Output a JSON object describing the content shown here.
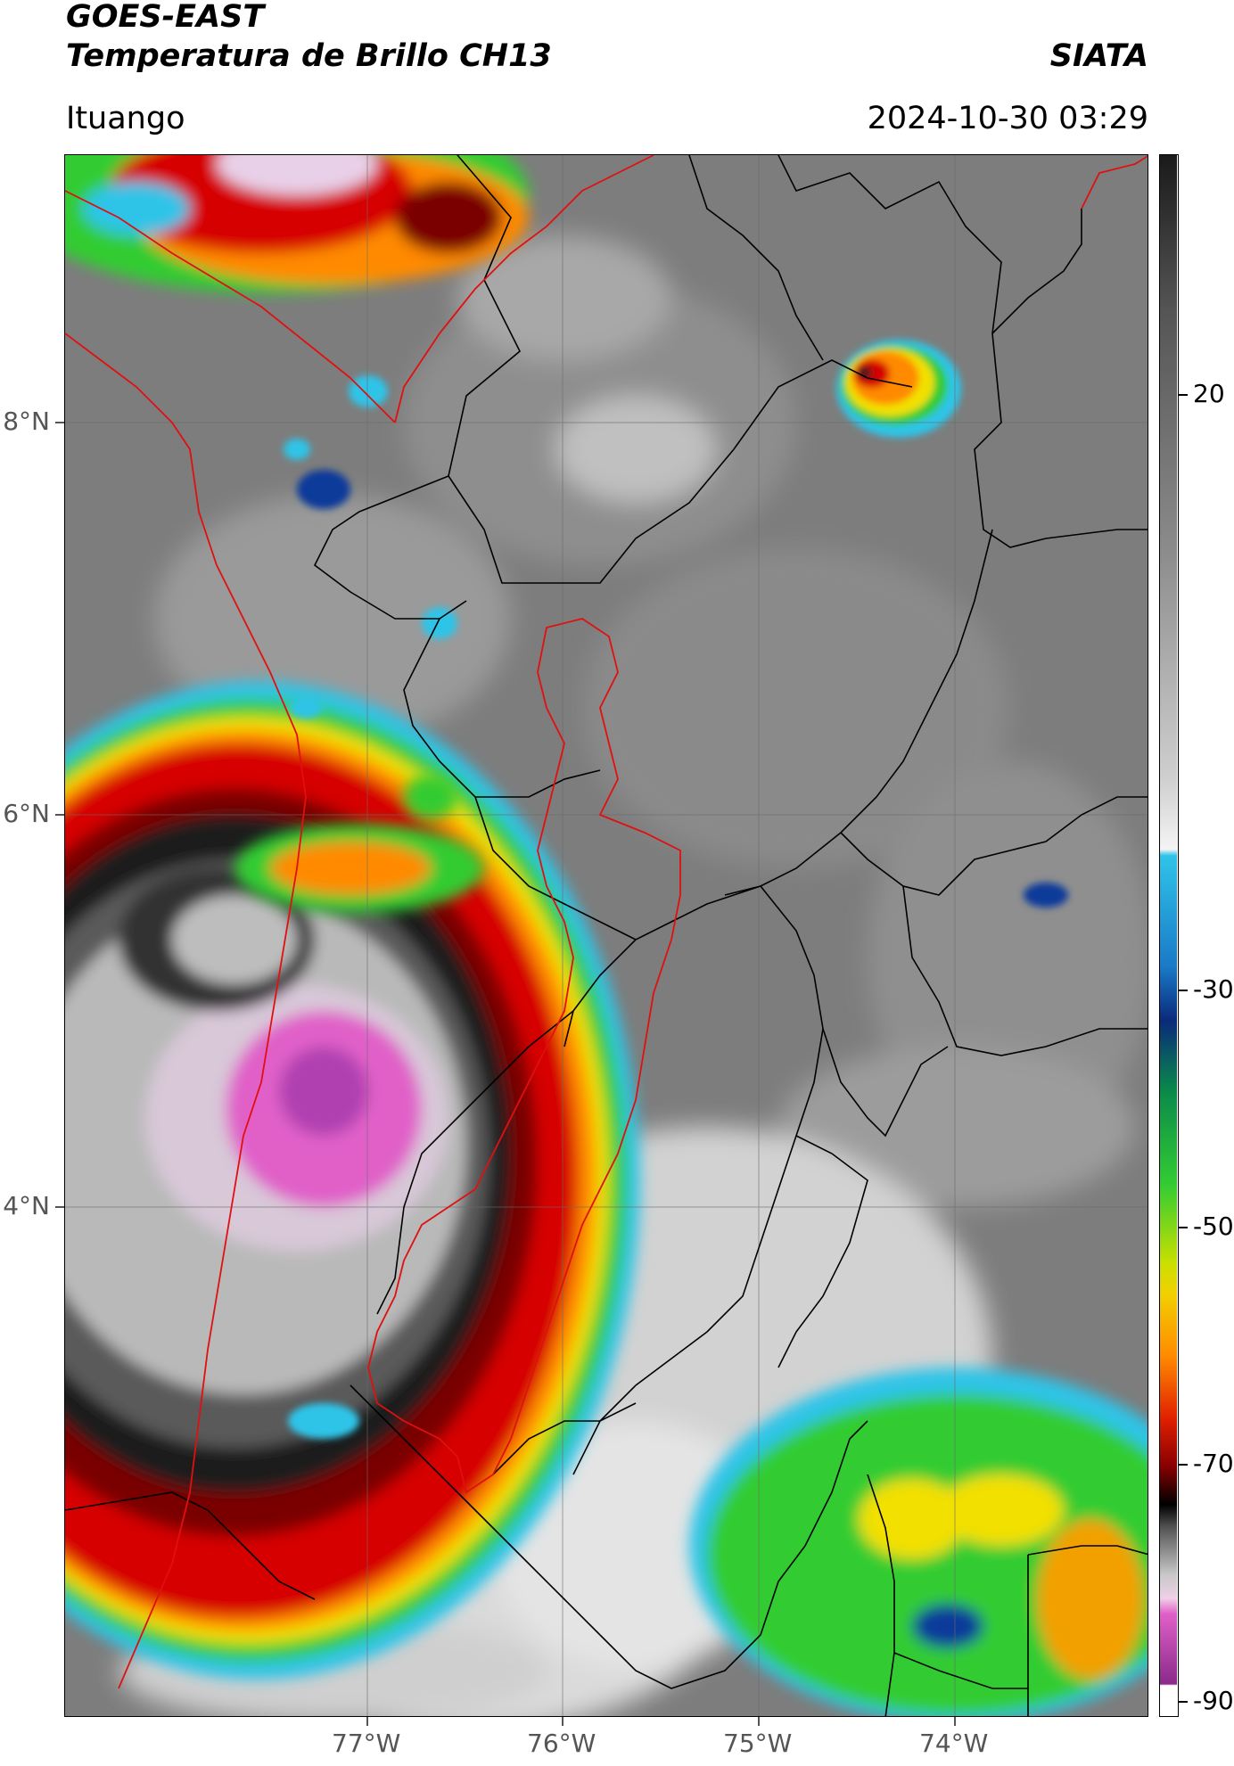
{
  "header": {
    "title_line1": "GOES-EAST",
    "title_line2": "Temperatura de Brillo CH13",
    "organization": "SIATA",
    "region": "Ituango",
    "datetime": "2024-10-30 03:29"
  },
  "colorbar": {
    "ticks": [
      {
        "label": "20",
        "value": 20
      },
      {
        "label": "-30",
        "value": -30
      },
      {
        "label": "-50",
        "value": -50
      },
      {
        "label": "-70",
        "value": -70
      },
      {
        "label": "-90",
        "value": -90
      }
    ],
    "range": [
      -92,
      45
    ],
    "colors": {
      "warm_top": "#1a1a1a",
      "warm_gray": "#777777",
      "light_gray": "#e8e8e8",
      "cyan": "#2fc4e8",
      "blue": "#0a3a9a",
      "green": "#33cc33",
      "yellow": "#f2e000",
      "orange": "#ff8a00",
      "red": "#d60000",
      "darkred": "#5a0000",
      "black": "#000000",
      "pink": "#e060c8",
      "purple": "#8a2a8a"
    }
  },
  "axes": {
    "lat_labels": [
      {
        "label": "8°N",
        "value": 8
      },
      {
        "label": "6°N",
        "value": 6
      },
      {
        "label": "4°N",
        "value": 4
      }
    ],
    "lon_labels": [
      {
        "label": "77°W",
        "value": -77
      },
      {
        "label": "76°W",
        "value": -76
      },
      {
        "label": "75°W",
        "value": -75
      },
      {
        "label": "74°W",
        "value": -74
      }
    ],
    "grid": true
  }
}
